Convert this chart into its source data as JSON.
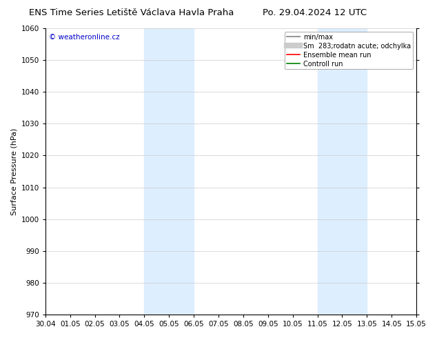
{
  "title_left": "ENS Time Series Letiště Václava Havla Praha",
  "title_right": "Po. 29.04.2024 12 UTC",
  "ylabel": "Surface Pressure (hPa)",
  "watermark": "© weatheronline.cz",
  "watermark_color": "#0000cc",
  "ylim": [
    970,
    1060
  ],
  "yticks": [
    970,
    980,
    990,
    1000,
    1010,
    1020,
    1030,
    1040,
    1050,
    1060
  ],
  "xtick_labels": [
    "30.04",
    "01.05",
    "02.05",
    "03.05",
    "04.05",
    "05.05",
    "06.05",
    "07.05",
    "08.05",
    "09.05",
    "10.05",
    "11.05",
    "12.05",
    "13.05",
    "14.05",
    "15.05"
  ],
  "shaded_bands": [
    {
      "xstart": 4,
      "xend": 6,
      "color": "#ddeeff"
    },
    {
      "xstart": 11,
      "xend": 13,
      "color": "#ddeeff"
    }
  ],
  "legend_entries": [
    {
      "label": "min/max",
      "color": "#999999",
      "lw": 1.5,
      "type": "line"
    },
    {
      "label": "Sm  283;rodatn acute; odchylka",
      "color": "#cccccc",
      "lw": 6,
      "type": "line"
    },
    {
      "label": "Ensemble mean run",
      "color": "#ff0000",
      "lw": 1.2,
      "type": "line"
    },
    {
      "label": "Controll run",
      "color": "#008000",
      "lw": 1.2,
      "type": "line"
    }
  ],
  "background_color": "#ffffff",
  "grid_color": "#cccccc",
  "title_fontsize": 9.5,
  "ylabel_fontsize": 8,
  "tick_fontsize": 7.5,
  "legend_fontsize": 7,
  "watermark_fontsize": 7.5
}
